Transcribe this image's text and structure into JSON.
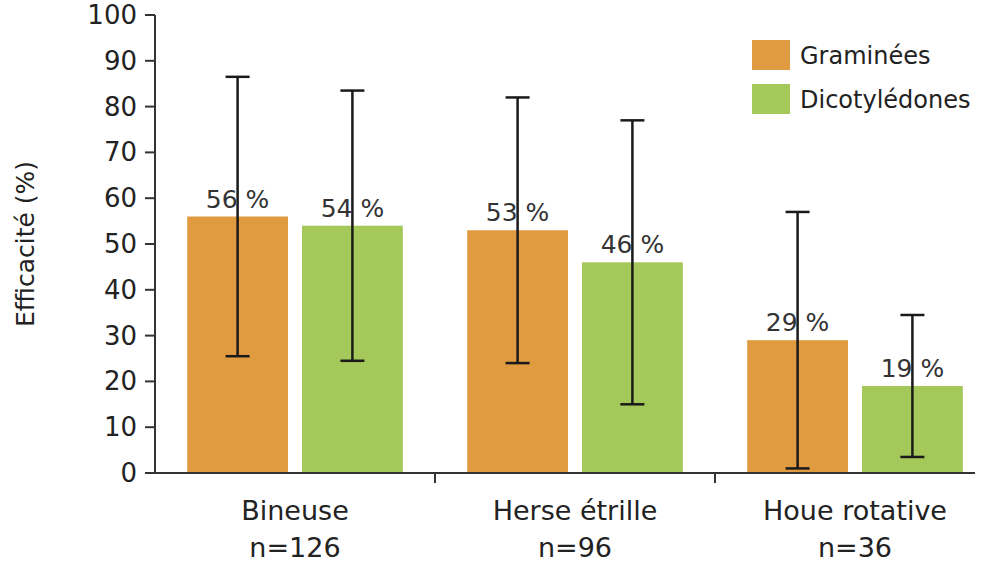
{
  "chart_data": {
    "type": "bar",
    "y_label": "Efficacité (%)",
    "categories": [
      "Bineuse",
      "Herse étrille",
      "Houe rotative"
    ],
    "category_notes": [
      "n=126",
      "n=96",
      "n=36"
    ],
    "series": [
      {
        "name": "Graminées",
        "color": "#e09a40",
        "values": [
          56,
          53,
          29
        ],
        "value_labels": [
          "56 %",
          "53 %",
          "29 %"
        ],
        "errors": [
          30.5,
          29,
          28
        ]
      },
      {
        "name": "Dicotylédones",
        "color": "#a4c85a",
        "values": [
          54,
          46,
          19
        ],
        "value_labels": [
          "54 %",
          "46 %",
          "19 %"
        ],
        "errors": [
          29.5,
          31,
          15.5
        ]
      }
    ],
    "ylim": [
      0,
      100
    ],
    "yticks": [
      0,
      10,
      20,
      30,
      40,
      50,
      60,
      70,
      80,
      90,
      100
    ],
    "grid": false,
    "legend": "top-right",
    "data_labels": true
  }
}
